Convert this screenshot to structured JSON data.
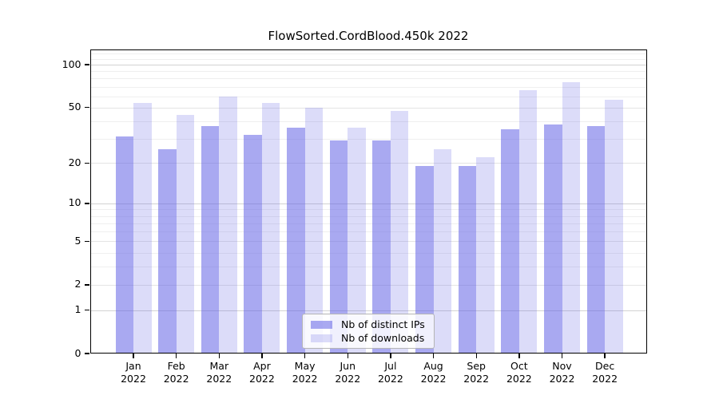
{
  "chart_data": {
    "type": "bar",
    "title": "FlowSorted.CordBlood.450k 2022",
    "categories": [
      "Jan",
      "Feb",
      "Mar",
      "Apr",
      "May",
      "Jun",
      "Jul",
      "Aug",
      "Sep",
      "Oct",
      "Nov",
      "Dec"
    ],
    "category_year": "2022",
    "series": [
      {
        "name": "Nb of distinct IPs",
        "color": "rgba(102,102,230,0.56)",
        "values": [
          31,
          25,
          37,
          32,
          36,
          29,
          29,
          19,
          19,
          35,
          38,
          37
        ]
      },
      {
        "name": "Nb of downloads",
        "color": "rgba(102,102,230,0.23)",
        "values": [
          54,
          44,
          60,
          54,
          50,
          36,
          47,
          25,
          22,
          66,
          75,
          57
        ]
      }
    ],
    "xlabel": "",
    "ylabel": "",
    "yscale": "log1p",
    "ylim": [
      0,
      127
    ],
    "yticks": [
      0,
      1,
      2,
      5,
      10,
      20,
      50,
      100
    ],
    "ytick_labels": [
      "0",
      "1",
      "2",
      "5",
      "10",
      "20",
      "50",
      "100"
    ],
    "grid": {
      "major_lines": [
        1,
        10,
        100
      ],
      "labeled_lines": [
        2,
        5,
        20,
        50
      ],
      "minor_lines": [
        3,
        4,
        6,
        7,
        8,
        9,
        30,
        40,
        60,
        70,
        80,
        90,
        110,
        120
      ],
      "major_color": "#d2d2d2",
      "labeled_color": "#e4e4e4",
      "minor_color": "#efefef"
    },
    "legend": {
      "position": "inside-bottom-center",
      "entries": [
        "Nb of distinct IPs",
        "Nb of downloads"
      ]
    },
    "colors": {
      "background": "#ffffff",
      "axis": "#000000",
      "text": "#000000"
    }
  }
}
